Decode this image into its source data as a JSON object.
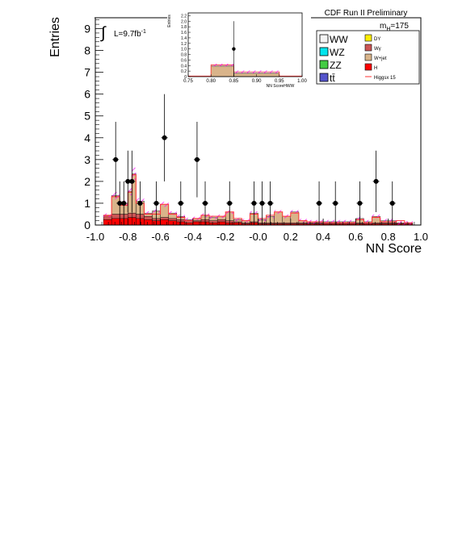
{
  "chart_data": {
    "type": "bar",
    "title": "CDF Run II Preliminary",
    "xlabel": "NN Score",
    "ylabel": "Entries",
    "xlim": [
      -1.0,
      1.0
    ],
    "ylim": [
      0,
      9.5
    ],
    "x_ticks": [
      "-1.0",
      "-0.8",
      "-0.6",
      "-0.4",
      "-0.2",
      "-0.0",
      "0.2",
      "0.4",
      "0.6",
      "0.8",
      "1.0"
    ],
    "y_ticks": [
      "0",
      "1",
      "2",
      "3",
      "4",
      "5",
      "6",
      "7",
      "8",
      "9"
    ],
    "lumi_label": "L=9.7fb",
    "lumi_sup": "-1",
    "mass_label": "m",
    "mass_sub": "H",
    "mass_value": "=175",
    "bin_edges": [
      -0.95,
      -0.9,
      -0.85,
      -0.8,
      -0.775,
      -0.75,
      -0.7,
      -0.65,
      -0.6,
      -0.55,
      -0.5,
      -0.45,
      -0.4,
      -0.35,
      -0.3,
      -0.25,
      -0.2,
      -0.15,
      -0.1,
      -0.05,
      0.0,
      0.05,
      0.1,
      0.15,
      0.2,
      0.25,
      0.3,
      0.35,
      0.4,
      0.45,
      0.5,
      0.55,
      0.6,
      0.65,
      0.7,
      0.75,
      0.8,
      0.85,
      0.9,
      0.95
    ],
    "series": [
      {
        "name": "H",
        "color": "#ff0000",
        "values": [
          0.25,
          0.3,
          0.3,
          0.35,
          0.35,
          0.3,
          0.25,
          0.2,
          0.25,
          0.2,
          0.15,
          0.1,
          0.15,
          0.15,
          0.1,
          0.15,
          0.1,
          0.1,
          0.05,
          0.1,
          0.05,
          0.05,
          0.05,
          0.05,
          0.05,
          0.05,
          0.05,
          0.05,
          0.05,
          0.05,
          0.05,
          0.05,
          0.05,
          0.05,
          0.05,
          0.05,
          0.05,
          0.05,
          0.05
        ]
      },
      {
        "name": "Wγ",
        "color": "#cc5555",
        "values": [
          0.2,
          0.2,
          0.2,
          0.2,
          0.2,
          0.2,
          0.15,
          0.1,
          0.1,
          0.1,
          0.1,
          0.1,
          0.05,
          0.1,
          0.1,
          0.1,
          0.1,
          0.05,
          0.05,
          0.05,
          0.05,
          0.05,
          0.05,
          0.05,
          0.05,
          0.05,
          0.05,
          0.05,
          0.05,
          0.05,
          0.05,
          0.05,
          0.05,
          0.05,
          0.05,
          0.05,
          0.05,
          0.05,
          0.05
        ]
      },
      {
        "name": "W+jet",
        "color": "#d9b48a",
        "values": [
          0.0,
          0.85,
          0.5,
          1.0,
          1.8,
          0.6,
          0.15,
          0.35,
          0.6,
          0.25,
          0.15,
          0.05,
          0.1,
          0.2,
          0.15,
          0.15,
          0.4,
          0.1,
          0.1,
          0.4,
          0.15,
          0.3,
          0.5,
          0.3,
          0.5,
          0.1,
          0.05,
          0.05,
          0.05,
          0.05,
          0.05,
          0.05,
          0.2,
          0.05,
          0.3,
          0.1,
          0.1,
          0.0,
          0.0
        ]
      },
      {
        "name": "WW",
        "color": "#f4f4f4",
        "values": [
          0,
          0,
          0,
          0,
          0,
          0,
          0,
          0,
          0,
          0,
          0,
          0,
          0,
          0,
          0,
          0,
          0,
          0,
          0,
          0,
          0,
          0,
          0,
          0,
          0,
          0,
          0,
          0,
          0,
          0,
          0,
          0,
          0,
          0,
          0,
          0,
          0,
          0,
          0
        ]
      }
    ],
    "higgs_x15_line": [
      0.45,
      1.3,
      0.9,
      1.5,
      2.3,
      1.0,
      0.5,
      0.5,
      0.95,
      0.5,
      0.35,
      0.2,
      0.3,
      0.45,
      0.4,
      0.4,
      0.6,
      0.3,
      0.2,
      0.5,
      0.3,
      0.45,
      0.6,
      0.4,
      0.55,
      0.2,
      0.15,
      0.15,
      0.1,
      0.1,
      0.1,
      0.1,
      0.25,
      0.1,
      0.35,
      0.15,
      0.15,
      0.2,
      0.1
    ],
    "data_points": [
      {
        "x": -0.875,
        "y": 3,
        "err": 1.73
      },
      {
        "x": -0.85,
        "y": 1,
        "err": 1.0
      },
      {
        "x": -0.825,
        "y": 1,
        "err": 1.0
      },
      {
        "x": -0.8,
        "y": 2,
        "err": 1.41
      },
      {
        "x": -0.775,
        "y": 2,
        "err": 1.41
      },
      {
        "x": -0.725,
        "y": 1,
        "err": 1.0
      },
      {
        "x": -0.625,
        "y": 1,
        "err": 1.0
      },
      {
        "x": -0.575,
        "y": 4,
        "err": 2.0
      },
      {
        "x": -0.475,
        "y": 1,
        "err": 1.0
      },
      {
        "x": -0.375,
        "y": 3,
        "err": 1.73
      },
      {
        "x": -0.325,
        "y": 1,
        "err": 1.0
      },
      {
        "x": -0.175,
        "y": 1,
        "err": 1.0
      },
      {
        "x": -0.025,
        "y": 1,
        "err": 1.0
      },
      {
        "x": 0.025,
        "y": 1,
        "err": 1.0
      },
      {
        "x": 0.075,
        "y": 1,
        "err": 1.0
      },
      {
        "x": 0.375,
        "y": 1,
        "err": 1.0
      },
      {
        "x": 0.475,
        "y": 1,
        "err": 1.0
      },
      {
        "x": 0.625,
        "y": 1,
        "err": 1.0
      },
      {
        "x": 0.725,
        "y": 2,
        "err": 1.41
      },
      {
        "x": 0.825,
        "y": 1,
        "err": 1.0
      }
    ],
    "legend": {
      "position": "top-right",
      "left_column": [
        {
          "label": "WW",
          "color": "#f4f4f4"
        },
        {
          "label": "WZ",
          "color": "#00e5ee"
        },
        {
          "label": "ZZ",
          "color": "#44cc44"
        },
        {
          "label": "tt̄",
          "color": "#5555cc"
        }
      ],
      "right_column": [
        {
          "label": "DY",
          "color": "#ffee00",
          "kind": "box"
        },
        {
          "label": "Wγ",
          "color": "#cc5555",
          "kind": "box"
        },
        {
          "label": "W+jet",
          "color": "#d9b48a",
          "kind": "box"
        },
        {
          "label": "H",
          "color": "#ff0000",
          "kind": "box"
        },
        {
          "label": "Higgsx 15",
          "color": "#ff3333",
          "kind": "line"
        }
      ]
    },
    "inset": {
      "type": "bar",
      "xlabel": "NN ScoreHWW",
      "ylabel": "Entries",
      "xlim": [
        0.75,
        1.0
      ],
      "ylim": [
        0,
        2.3
      ],
      "x_ticks": [
        "0.75",
        "0.80",
        "0.85",
        "0.90",
        "0.95",
        "1.00"
      ],
      "y_ticks": [
        "0",
        "0.2",
        "0.4",
        "0.6",
        "0.8",
        "1.0",
        "1.2",
        "1.4",
        "1.6",
        "1.8",
        "2.0",
        "2.2"
      ],
      "bins": [
        {
          "x0": 0.8,
          "x1": 0.85,
          "value": 0.38
        },
        {
          "x0": 0.85,
          "x1": 0.95,
          "value": 0.12
        }
      ],
      "higgs_line": [
        {
          "x0": 0.75,
          "x1": 0.8,
          "value": 0.02
        },
        {
          "x0": 0.8,
          "x1": 0.85,
          "value": 0.42
        },
        {
          "x0": 0.85,
          "x1": 0.95,
          "value": 0.17
        },
        {
          "x0": 0.95,
          "x1": 1.0,
          "value": 0.02
        }
      ],
      "data_point": {
        "x": 0.85,
        "y": 1.0,
        "err": 1.0
      }
    }
  }
}
